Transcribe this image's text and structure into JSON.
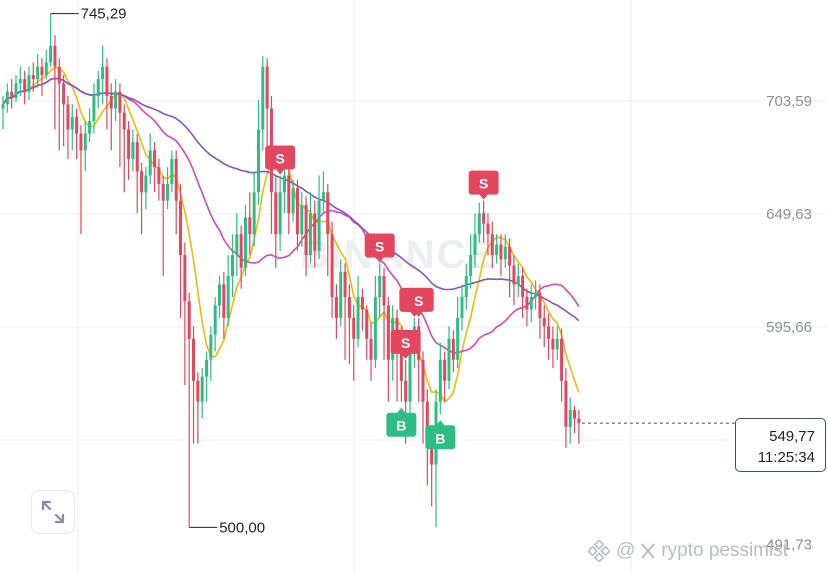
{
  "chart_data": {
    "type": "candlestick",
    "y_ticks": [
      703.59,
      649.63,
      595.66,
      549.77,
      491.73
    ],
    "y_tick_labels": [
      "703,59",
      "649,63",
      "595,66",
      "491,73"
    ],
    "high": {
      "value": 745.29,
      "label": "745,29"
    },
    "low": {
      "value": 500.0,
      "label": "500,00"
    },
    "current_price": {
      "value": 549.77,
      "label": "549,77",
      "countdown": "11:25:34"
    },
    "watermark": "BINANCE",
    "colors": {
      "up": "#2ebd85",
      "down": "#e2475f",
      "ma_short": "#f0b90b",
      "ma_mid": "#d948b0",
      "ma_long": "#7e57c2"
    },
    "markers": [
      {
        "type": "S",
        "index": 64
      },
      {
        "type": "S",
        "index": 87
      },
      {
        "type": "S",
        "index": 93
      },
      {
        "type": "S",
        "index": 95
      },
      {
        "type": "S",
        "index": 96
      },
      {
        "type": "S",
        "index": 111
      },
      {
        "type": "B",
        "index": 92
      },
      {
        "type": "B",
        "index": 101
      }
    ],
    "candles": [
      [
        700,
        702,
        690,
        706
      ],
      [
        702,
        708,
        698,
        712
      ],
      [
        708,
        705,
        700,
        714
      ],
      [
        705,
        712,
        703,
        716
      ],
      [
        712,
        714,
        706,
        720
      ],
      [
        714,
        708,
        702,
        718
      ],
      [
        708,
        716,
        704,
        720
      ],
      [
        716,
        714,
        708,
        722
      ],
      [
        714,
        720,
        710,
        726
      ],
      [
        720,
        716,
        706,
        724
      ],
      [
        716,
        722,
        714,
        728
      ],
      [
        722,
        730,
        720,
        745.29
      ],
      [
        730,
        720,
        690,
        735
      ],
      [
        720,
        712,
        680,
        724
      ],
      [
        712,
        702,
        682,
        716
      ],
      [
        702,
        690,
        676,
        706
      ],
      [
        690,
        696,
        680,
        702
      ],
      [
        696,
        688,
        676,
        700
      ],
      [
        688,
        680,
        640,
        692
      ],
      [
        680,
        688,
        670,
        694
      ],
      [
        688,
        694,
        684,
        700
      ],
      [
        694,
        706,
        688,
        712
      ],
      [
        706,
        714,
        700,
        718
      ],
      [
        714,
        720,
        702,
        730
      ],
      [
        720,
        706,
        690,
        724
      ],
      [
        706,
        700,
        680,
        712
      ],
      [
        700,
        708,
        694,
        714
      ],
      [
        708,
        698,
        672,
        712
      ],
      [
        698,
        690,
        660,
        702
      ],
      [
        690,
        676,
        666,
        694
      ],
      [
        676,
        684,
        670,
        690
      ],
      [
        684,
        670,
        650,
        688
      ],
      [
        670,
        660,
        640,
        674
      ],
      [
        660,
        668,
        652,
        672
      ],
      [
        668,
        680,
        664,
        688
      ],
      [
        680,
        672,
        660,
        684
      ],
      [
        672,
        664,
        656,
        676
      ],
      [
        664,
        656,
        620,
        668
      ],
      [
        656,
        664,
        652,
        672
      ],
      [
        664,
        676,
        660,
        680
      ],
      [
        676,
        656,
        640,
        680
      ],
      [
        656,
        630,
        600,
        664
      ],
      [
        630,
        608,
        568,
        636
      ],
      [
        608,
        590,
        500,
        612
      ],
      [
        590,
        570,
        540,
        596
      ],
      [
        570,
        560,
        540,
        574
      ],
      [
        560,
        572,
        552,
        576
      ],
      [
        572,
        580,
        560,
        584
      ],
      [
        580,
        592,
        570,
        596
      ],
      [
        592,
        606,
        584,
        610
      ],
      [
        606,
        616,
        600,
        620
      ],
      [
        616,
        600,
        590,
        622
      ],
      [
        600,
        620,
        596,
        630
      ],
      [
        620,
        630,
        610,
        640
      ],
      [
        630,
        640,
        620,
        650
      ],
      [
        640,
        624,
        614,
        644
      ],
      [
        624,
        648,
        620,
        654
      ],
      [
        648,
        640,
        630,
        660
      ],
      [
        640,
        660,
        634,
        670
      ],
      [
        660,
        690,
        654,
        704
      ],
      [
        690,
        720,
        680,
        725
      ],
      [
        720,
        700,
        680,
        724
      ],
      [
        700,
        660,
        640,
        706
      ],
      [
        660,
        640,
        624,
        668
      ],
      [
        640,
        660,
        632,
        668
      ],
      [
        660,
        668,
        650,
        672
      ],
      [
        668,
        650,
        640,
        674
      ],
      [
        650,
        662,
        646,
        666
      ],
      [
        662,
        640,
        632,
        666
      ],
      [
        640,
        654,
        634,
        660
      ],
      [
        654,
        630,
        620,
        658
      ],
      [
        630,
        650,
        626,
        660
      ],
      [
        650,
        632,
        624,
        656
      ],
      [
        632,
        656,
        628,
        668
      ],
      [
        656,
        660,
        650,
        670
      ],
      [
        660,
        640,
        620,
        664
      ],
      [
        640,
        610,
        600,
        646
      ],
      [
        610,
        600,
        590,
        616
      ],
      [
        600,
        622,
        596,
        628
      ],
      [
        622,
        610,
        580,
        626
      ],
      [
        610,
        600,
        578,
        616
      ],
      [
        600,
        590,
        570,
        606
      ],
      [
        590,
        610,
        586,
        620
      ],
      [
        610,
        604,
        594,
        614
      ],
      [
        604,
        590,
        580,
        606
      ],
      [
        590,
        580,
        570,
        598
      ],
      [
        580,
        610,
        576,
        620
      ],
      [
        610,
        620,
        600,
        626
      ],
      [
        620,
        606,
        580,
        624
      ],
      [
        606,
        580,
        560,
        610
      ],
      [
        580,
        600,
        570,
        606
      ],
      [
        600,
        590,
        560,
        604
      ],
      [
        590,
        570,
        560,
        596
      ],
      [
        570,
        560,
        540,
        580
      ],
      [
        560,
        586,
        552,
        590
      ],
      [
        586,
        596,
        576,
        600
      ],
      [
        596,
        580,
        560,
        600
      ],
      [
        580,
        560,
        540,
        584
      ],
      [
        560,
        540,
        520,
        566
      ],
      [
        540,
        530,
        510,
        546
      ],
      [
        530,
        560,
        500,
        566
      ],
      [
        560,
        580,
        554,
        588
      ],
      [
        580,
        570,
        560,
        584
      ],
      [
        570,
        590,
        566,
        596
      ],
      [
        590,
        580,
        574,
        594
      ],
      [
        580,
        600,
        576,
        610
      ],
      [
        600,
        610,
        594,
        616
      ],
      [
        610,
        620,
        604,
        626
      ],
      [
        620,
        630,
        614,
        640
      ],
      [
        630,
        640,
        624,
        650
      ],
      [
        640,
        650,
        636,
        655
      ],
      [
        650,
        645,
        636,
        656
      ],
      [
        645,
        640,
        630,
        650
      ],
      [
        640,
        630,
        624,
        646
      ],
      [
        630,
        635,
        626,
        640
      ],
      [
        635,
        628,
        620,
        640
      ],
      [
        628,
        634,
        624,
        640
      ],
      [
        634,
        625,
        610,
        638
      ],
      [
        625,
        616,
        606,
        630
      ],
      [
        616,
        620,
        610,
        626
      ],
      [
        620,
        610,
        600,
        624
      ],
      [
        610,
        604,
        596,
        614
      ],
      [
        604,
        610,
        598,
        616
      ],
      [
        610,
        612,
        604,
        618
      ],
      [
        612,
        600,
        590,
        616
      ],
      [
        600,
        596,
        586,
        606
      ],
      [
        596,
        590,
        580,
        602
      ],
      [
        590,
        585,
        576,
        596
      ],
      [
        585,
        590,
        580,
        596
      ],
      [
        590,
        570,
        560,
        595
      ],
      [
        570,
        548,
        538,
        576
      ],
      [
        548,
        556,
        540,
        562
      ],
      [
        556,
        552,
        545,
        558
      ],
      [
        552,
        549.77,
        540,
        556
      ]
    ]
  }
}
